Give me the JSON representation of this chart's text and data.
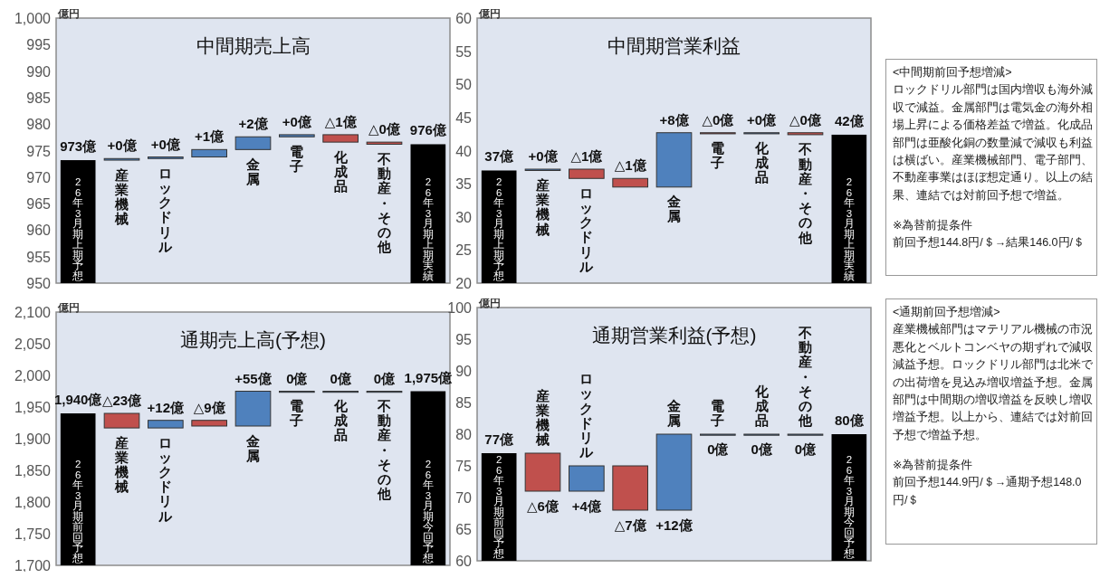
{
  "chart_data": [
    {
      "type": "bar",
      "title": "中間期売上高",
      "ylabel": "億円",
      "categories": [
        "26年3月期上期予想",
        "産業機械",
        "ロックドリル",
        null,
        "金属",
        "電子",
        "化成品",
        "不動産・その他",
        "26年3月期上期実績"
      ],
      "values": [
        973.2,
        0.3,
        0.3,
        1.4,
        2.4,
        0.4,
        -1.4,
        -0.4,
        976.2
      ],
      "base": [
        null,
        973.2,
        973.5,
        973.8,
        975.2,
        977.6,
        978.0,
        976.6,
        null
      ],
      "colors": [
        "#000000",
        "#4f81bd",
        "#4f81bd",
        "#4f81bd",
        "#4f81bd",
        "#4f81bd",
        "#c0504d",
        "#c0504d",
        "#000000"
      ],
      "value_labels": [
        "973億",
        "+0億",
        "+0億",
        "+1億",
        "+2億",
        "+0億",
        "△1億",
        "△0億",
        "976億"
      ],
      "ylim": [
        950,
        1000
      ],
      "yticks": [
        950,
        955,
        960,
        965,
        970,
        975,
        980,
        985,
        990,
        995,
        {
          "value": 1000,
          "label": "1,000"
        }
      ]
    },
    {
      "type": "bar",
      "title": "中間期営業利益",
      "ylabel": "億円",
      "categories": [
        "26年3月期上期予想",
        "産業機械",
        "ロックドリル",
        null,
        "金属",
        "電子",
        "化成品",
        "不動産・その他",
        "26年3月期上期実績"
      ],
      "values": [
        37.0,
        0.2,
        -1.4,
        -1.3,
        8.2,
        -0.1,
        0.1,
        -0.3,
        42.4
      ],
      "base": [
        null,
        37.0,
        37.2,
        35.8,
        34.5,
        42.7,
        42.6,
        42.7,
        null
      ],
      "colors": [
        "#000000",
        "#4f81bd",
        "#c0504d",
        "#c0504d",
        "#4f81bd",
        "#c0504d",
        "#4f81bd",
        "#c0504d",
        "#000000"
      ],
      "value_labels": [
        "37億",
        "+0億",
        "△1億",
        "△1億",
        "+8億",
        "△0億",
        "+0億",
        "△0億",
        "42億"
      ],
      "ylim": [
        20,
        60
      ],
      "yticks": [
        20,
        25,
        30,
        35,
        40,
        45,
        50,
        55,
        60
      ]
    },
    {
      "type": "other",
      "title": "<中間期前回予想増減>",
      "annotations": [
        "ロックドリル部門は国内増収も海外減収で減益。金属部門は電気金の海外相場上昇による価格差益で増益。化成品部門は亜酸化銅の数量減で減収も利益は横ばい。産業機械部門、電子部門、不動産事業はほぼ想定通り。以上の結果、連結では対前回予想で増益。",
        "※為替前提条件",
        "前回予想144.8円/＄→結果146.0円/＄"
      ]
    },
    {
      "type": "bar",
      "title": "通期売上高(予想)",
      "ylabel": "億円",
      "categories": [
        "26年3月期前回予想",
        "産業機械",
        "ロックドリル",
        null,
        "金属",
        "電子",
        "化成品",
        "不動産・その他",
        "26年3月期今回予想"
      ],
      "values": [
        1940,
        -23,
        12,
        -9,
        55,
        0,
        0,
        0,
        1975
      ],
      "base": [
        null,
        1940,
        1917,
        1929,
        1920,
        1975,
        1975,
        1975,
        null
      ],
      "colors": [
        "#000000",
        "#c0504d",
        "#4f81bd",
        "#c0504d",
        "#4f81bd",
        "#4f81bd",
        "#4f81bd",
        "#4f81bd",
        "#000000"
      ],
      "value_labels": [
        "1,940億",
        "△23億",
        "+12億",
        "△9億",
        "+55億",
        "0億",
        "0億",
        "0億",
        "1,975億"
      ],
      "ylim": [
        1700,
        2100
      ],
      "yticks": [
        {
          "value": 1700,
          "label": "1,700"
        },
        {
          "value": 1750,
          "label": "1,750"
        },
        {
          "value": 1800,
          "label": "1,800"
        },
        {
          "value": 1850,
          "label": "1,850"
        },
        {
          "value": 1900,
          "label": "1,900"
        },
        {
          "value": 1950,
          "label": "1,950"
        },
        {
          "value": 2000,
          "label": "2,000"
        },
        {
          "value": 2050,
          "label": "2,050"
        },
        {
          "value": 2100,
          "label": "2,100"
        }
      ]
    },
    {
      "type": "bar",
      "title": "通期営業利益(予想)",
      "ylabel": "億円",
      "categories": [
        "26年3月期前回予想",
        "産業機械",
        "ロックドリル",
        null,
        "金属",
        "電子",
        "化成品",
        "不動産・その他",
        "26年3月期今回予想"
      ],
      "values": [
        77,
        -6,
        4,
        -7,
        12,
        0,
        0,
        0,
        80
      ],
      "base": [
        null,
        77,
        71,
        75,
        68,
        80,
        80,
        80,
        null
      ],
      "colors": [
        "#000000",
        "#c0504d",
        "#4f81bd",
        "#c0504d",
        "#4f81bd",
        "#4f81bd",
        "#4f81bd",
        "#4f81bd",
        "#000000"
      ],
      "value_labels": [
        "77億",
        "△6億",
        "+4億",
        "△7億",
        "+12億",
        "0億",
        "0億",
        "0億",
        "80億"
      ],
      "ylim": [
        60,
        100
      ],
      "yticks": [
        60,
        65,
        70,
        75,
        80,
        85,
        90,
        95,
        100
      ]
    },
    {
      "type": "other",
      "title": "<通期前回予想増減>",
      "annotations": [
        "産業機械部門はマテリアル機械の市況悪化とベルトコンベヤの期ずれで減収減益予想。ロックドリル部門は北米での出荷増を見込み増収増益予想。金属部門は中間期の増収増益を反映し増収増益予想。以上から、連結では対前回予想で増益予想。",
        "※為替前提条件",
        "前回予想144.9円/＄→通期予想148.0円/＄"
      ]
    }
  ]
}
